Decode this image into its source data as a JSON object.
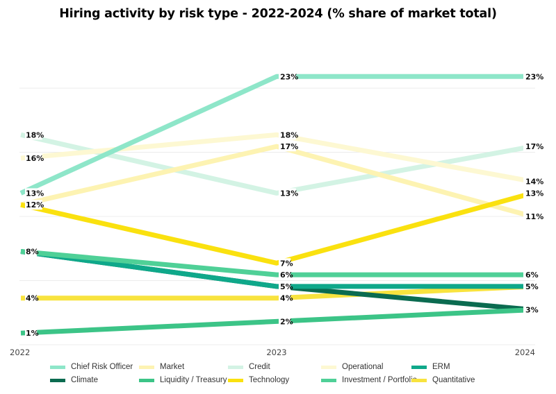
{
  "chart_data": {
    "type": "line",
    "title": "Hiring activity by risk type - 2022-2024 (% share of market total)",
    "x": [
      "2022",
      "2023",
      "2024"
    ],
    "xlabel": "",
    "ylabel": "",
    "ylim": [
      0,
      27
    ],
    "grid": true,
    "legend_position": "bottom",
    "value_suffix": "%",
    "series": [
      {
        "name": "Chief Risk Officer",
        "values": [
          13,
          23,
          23
        ],
        "color": "#8ee6c9",
        "labels": [
          "13%",
          "23%",
          "23%"
        ]
      },
      {
        "name": "Market",
        "values": [
          12,
          17,
          11
        ],
        "color": "#fdf3b2",
        "labels": [
          "",
          "17%",
          "11%"
        ]
      },
      {
        "name": "Credit",
        "values": [
          18,
          13,
          17
        ],
        "color": "#d3f3e4",
        "labels": [
          "18%",
          "13%",
          "17%"
        ]
      },
      {
        "name": "Operational",
        "values": [
          16,
          18,
          14
        ],
        "color": "#fdf8d2",
        "labels": [
          "16%",
          "18%",
          "14%"
        ]
      },
      {
        "name": "ERM",
        "values": [
          8,
          5,
          5
        ],
        "color": "#0fa88a",
        "labels": [
          "",
          "",
          ""
        ]
      },
      {
        "name": "Climate",
        "values": [
          8,
          5,
          3
        ],
        "color": "#0b6b50",
        "labels": [
          "8%",
          "5%",
          "3%"
        ]
      },
      {
        "name": "Liquidity / Treasury",
        "values": [
          1,
          2,
          3
        ],
        "color": "#3cc487",
        "labels": [
          "1%",
          "2%",
          ""
        ]
      },
      {
        "name": "Technology",
        "values": [
          12,
          7,
          13
        ],
        "color": "#fae10f",
        "labels": [
          "12%",
          "7%",
          "13%"
        ]
      },
      {
        "name": "Investment / Portfolio",
        "values": [
          8,
          6,
          6
        ],
        "color": "#4fd097",
        "labels": [
          "",
          "6%",
          "6%"
        ]
      },
      {
        "name": "Quantitative",
        "values": [
          4,
          4,
          5
        ],
        "color": "#f8e33e",
        "labels": [
          "4%",
          "4%",
          "5%"
        ]
      }
    ],
    "draw_order": [
      2,
      3,
      1,
      0,
      7,
      9,
      5,
      4,
      8,
      6
    ]
  }
}
